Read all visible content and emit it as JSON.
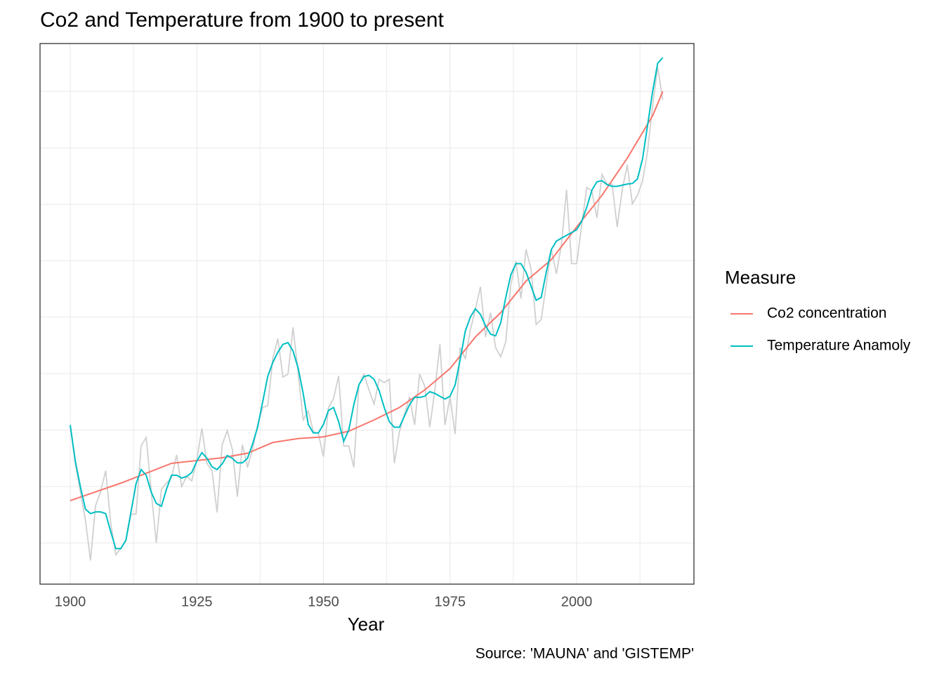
{
  "chart_data": {
    "type": "line",
    "title": "Co2 and Temperature from 1900 to present",
    "x_label": "Year",
    "caption": "Source: 'MAUNA' and 'GISTEMP'",
    "legend_title": "Measure",
    "legend_position": "right",
    "grid": true,
    "xlim": [
      1894.04,
      2023.16
    ],
    "xticks": [
      1900,
      1925,
      1950,
      1975,
      2000
    ],
    "ylim": [
      -0.73,
      8.85
    ],
    "yticks": [
      0,
      1,
      2,
      3,
      4,
      5,
      6,
      7,
      8
    ],
    "series": [
      {
        "color": "#d0d0d0",
        "x": [
          1900,
          1901,
          1902,
          1903,
          1904,
          1905,
          1906,
          1907,
          1908,
          1909,
          1910,
          1911,
          1912,
          1913,
          1914,
          1915,
          1916,
          1917,
          1918,
          1919,
          1920,
          1921,
          1922,
          1923,
          1924,
          1925,
          1926,
          1927,
          1928,
          1929,
          1930,
          1931,
          1932,
          1933,
          1934,
          1935,
          1936,
          1937,
          1938,
          1939,
          1940,
          1941,
          1942,
          1943,
          1944,
          1945,
          1946,
          1947,
          1948,
          1949,
          1950,
          1951,
          1952,
          1953,
          1954,
          1955,
          1956,
          1957,
          1958,
          1959,
          1960,
          1961,
          1962,
          1963,
          1964,
          1965,
          1966,
          1967,
          1968,
          1969,
          1970,
          1971,
          1972,
          1973,
          1974,
          1975,
          1976,
          1977,
          1978,
          1979,
          1980,
          1981,
          1982,
          1983,
          1984,
          1985,
          1986,
          1987,
          1988,
          1989,
          1990,
          1991,
          1992,
          1993,
          1994,
          1995,
          1996,
          1997,
          1998,
          1999,
          2000,
          2001,
          2002,
          2003,
          2004,
          2005,
          2006,
          2007,
          2008,
          2009,
          2010,
          2011,
          2012,
          2013,
          2014,
          2015,
          2016,
          2017
        ],
        "values": [
          2.09,
          1.41,
          0.91,
          0.41,
          -0.31,
          0.66,
          0.91,
          1.28,
          0.35,
          -0.21,
          -0.09,
          0.04,
          0.51,
          0.51,
          1.72,
          1.87,
          0.91,
          0,
          0.95,
          1.06,
          1.16,
          1.56,
          1.0,
          1.18,
          1.1,
          1.47,
          2.03,
          1.41,
          1.28,
          0.54,
          1.74,
          1.99,
          1.66,
          0.82,
          1.74,
          1.34,
          1.66,
          2.09,
          2.4,
          2.43,
          3.27,
          3.62,
          2.94,
          2.99,
          3.82,
          3.02,
          2.18,
          2.34,
          1.97,
          1.94,
          1.53,
          2.4,
          2.56,
          2.96,
          1.72,
          1.72,
          1.34,
          2.8,
          2.99,
          2.71,
          2.46,
          2.9,
          2.84,
          2.9,
          1.41,
          1.97,
          2.28,
          2.59,
          2.09,
          2.99,
          2.78,
          2.05,
          2.71,
          3.52,
          2.09,
          2.59,
          1.93,
          3.46,
          3.27,
          3.77,
          4.14,
          4.54,
          3.65,
          4.08,
          3.46,
          3.3,
          3.56,
          4.58,
          4.99,
          4.33,
          5.2,
          4.85,
          3.87,
          3.96,
          4.58,
          5.2,
          4.77,
          5.29,
          6.26,
          4.95,
          4.95,
          5.64,
          6.3,
          6.24,
          5.76,
          6.53,
          6.36,
          6.36,
          5.6,
          6.26,
          6.7,
          6.01,
          6.16,
          6.41,
          6.94,
          7.75,
          8.43,
          7.85
        ]
      },
      {
        "name": "Co2 concentration",
        "color": "#F8766D",
        "x": [
          1900,
          1910,
          1920,
          1930,
          1935,
          1940,
          1945,
          1950,
          1955,
          1960,
          1965,
          1970,
          1975,
          1980,
          1985,
          1990,
          1995,
          2000,
          2005,
          2010,
          2015,
          2017
        ],
        "values": [
          0.75,
          1.06,
          1.41,
          1.51,
          1.59,
          1.78,
          1.85,
          1.88,
          1.98,
          2.18,
          2.4,
          2.71,
          3.09,
          3.65,
          4.08,
          4.64,
          5.02,
          5.6,
          6.16,
          6.82,
          7.57,
          8.0
        ]
      },
      {
        "name": "Temperature Anamoly",
        "color": "#00BFC4",
        "x": [
          1900,
          1901,
          1902,
          1903,
          1904,
          1905,
          1906,
          1907,
          1908,
          1909,
          1910,
          1911,
          1912,
          1913,
          1914,
          1915,
          1916,
          1917,
          1918,
          1919,
          1920,
          1921,
          1922,
          1923,
          1924,
          1925,
          1926,
          1927,
          1928,
          1929,
          1930,
          1931,
          1932,
          1933,
          1934,
          1935,
          1936,
          1937,
          1938,
          1939,
          1940,
          1941,
          1942,
          1943,
          1944,
          1945,
          1946,
          1947,
          1948,
          1949,
          1950,
          1951,
          1952,
          1953,
          1954,
          1955,
          1956,
          1957,
          1958,
          1959,
          1960,
          1961,
          1962,
          1963,
          1964,
          1965,
          1966,
          1967,
          1968,
          1969,
          1970,
          1971,
          1972,
          1973,
          1974,
          1975,
          1976,
          1977,
          1978,
          1979,
          1980,
          1981,
          1982,
          1983,
          1984,
          1985,
          1986,
          1987,
          1988,
          1989,
          1990,
          1991,
          1992,
          1993,
          1994,
          1995,
          1996,
          1997,
          1998,
          1999,
          2000,
          2001,
          2002,
          2003,
          2004,
          2005,
          2006,
          2007,
          2008,
          2009,
          2010,
          2011,
          2012,
          2013,
          2014,
          2015,
          2016,
          2017
        ],
        "values": [
          2.09,
          1.45,
          1.0,
          0.6,
          0.52,
          0.55,
          0.55,
          0.52,
          0.2,
          -0.1,
          -0.1,
          0.05,
          0.55,
          1.05,
          1.3,
          1.2,
          0.9,
          0.7,
          0.65,
          0.95,
          1.2,
          1.2,
          1.15,
          1.18,
          1.25,
          1.45,
          1.6,
          1.5,
          1.35,
          1.3,
          1.4,
          1.55,
          1.5,
          1.42,
          1.42,
          1.5,
          1.75,
          2.05,
          2.5,
          2.95,
          3.2,
          3.38,
          3.52,
          3.55,
          3.4,
          3.1,
          2.65,
          2.1,
          1.95,
          1.95,
          2.1,
          2.35,
          2.4,
          2.15,
          1.8,
          2.0,
          2.45,
          2.8,
          2.95,
          2.97,
          2.9,
          2.7,
          2.4,
          2.15,
          2.05,
          2.05,
          2.25,
          2.45,
          2.58,
          2.58,
          2.6,
          2.68,
          2.65,
          2.6,
          2.55,
          2.6,
          2.8,
          3.25,
          3.75,
          4.0,
          4.15,
          4.05,
          3.85,
          3.7,
          3.67,
          3.9,
          4.35,
          4.75,
          4.95,
          4.95,
          4.8,
          4.55,
          4.3,
          4.35,
          4.8,
          5.2,
          5.35,
          5.4,
          5.45,
          5.5,
          5.55,
          5.7,
          5.95,
          6.25,
          6.4,
          6.42,
          6.35,
          6.32,
          6.32,
          6.34,
          6.36,
          6.37,
          6.45,
          6.8,
          7.4,
          8.0,
          8.5,
          8.6
        ]
      }
    ]
  }
}
